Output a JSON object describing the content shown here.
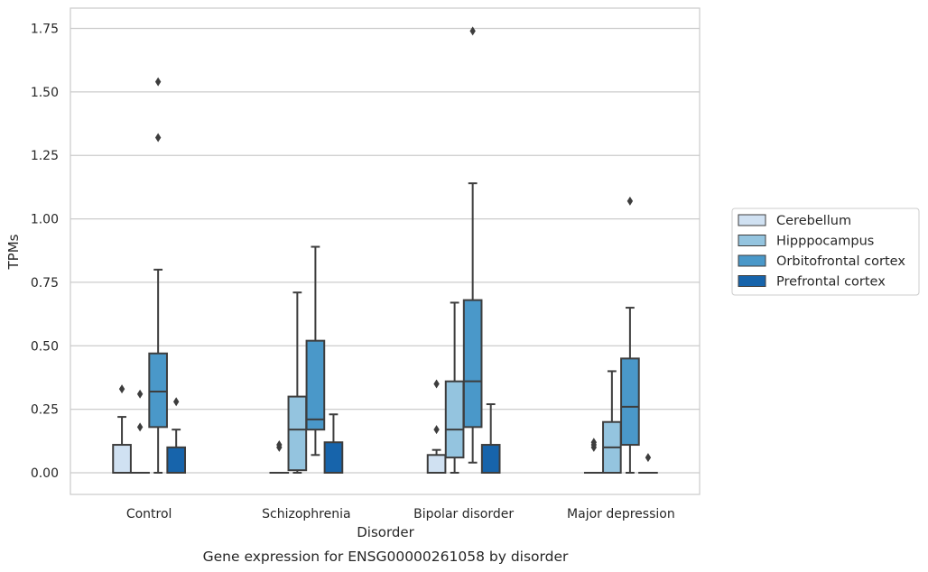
{
  "chart_data": {
    "type": "box",
    "title": "",
    "caption": "Gene expression for ENSG00000261058 by disorder",
    "xlabel": "Disorder",
    "ylabel": "TPMs",
    "ylim": [
      -0.085,
      1.83
    ],
    "yticks": [
      0,
      0.25,
      0.5,
      0.75,
      1.0,
      1.25,
      1.5,
      1.75
    ],
    "ytick_labels": [
      "0.00",
      "0.25",
      "0.50",
      "0.75",
      "1.00",
      "1.25",
      "1.50",
      "1.75"
    ],
    "grid": "horizontal",
    "legend_position": "right",
    "categories": [
      "Control",
      "Schizophrenia",
      "Bipolar disorder",
      "Major depression"
    ],
    "series": [
      {
        "name": "Cerebellum",
        "color": "#d0e1f2",
        "boxes": [
          {
            "q1": 0.0,
            "median": 0.0,
            "q3": 0.11,
            "whislo": 0.0,
            "whishi": 0.22,
            "fliers": [
              0.33
            ]
          },
          {
            "q1": 0.0,
            "median": 0.0,
            "q3": 0.0,
            "whislo": 0.0,
            "whishi": 0.0,
            "fliers": [
              0.1,
              0.11
            ]
          },
          {
            "q1": 0.0,
            "median": 0.0,
            "q3": 0.07,
            "whislo": 0.0,
            "whishi": 0.09,
            "fliers": [
              0.17,
              0.35
            ]
          },
          {
            "q1": 0.0,
            "median": 0.0,
            "q3": 0.0,
            "whislo": 0.0,
            "whishi": 0.0,
            "fliers": [
              0.1,
              0.11,
              0.12
            ]
          }
        ]
      },
      {
        "name": "Hipppocampus",
        "color": "#94c4df",
        "boxes": [
          {
            "q1": 0.0,
            "median": 0.0,
            "q3": 0.0,
            "whislo": 0.0,
            "whishi": 0.0,
            "fliers": [
              0.18,
              0.31
            ]
          },
          {
            "q1": 0.01,
            "median": 0.17,
            "q3": 0.3,
            "whislo": 0.0,
            "whishi": 0.71,
            "fliers": []
          },
          {
            "q1": 0.06,
            "median": 0.17,
            "q3": 0.36,
            "whislo": 0.0,
            "whishi": 0.67,
            "fliers": []
          },
          {
            "q1": 0.0,
            "median": 0.1,
            "q3": 0.2,
            "whislo": 0.0,
            "whishi": 0.4,
            "fliers": []
          }
        ]
      },
      {
        "name": "Orbitofrontal cortex",
        "color": "#4a98c9",
        "boxes": [
          {
            "q1": 0.18,
            "median": 0.32,
            "q3": 0.47,
            "whislo": 0.0,
            "whishi": 0.8,
            "fliers": [
              1.32,
              1.54
            ]
          },
          {
            "q1": 0.17,
            "median": 0.21,
            "q3": 0.52,
            "whislo": 0.07,
            "whishi": 0.89,
            "fliers": []
          },
          {
            "q1": 0.18,
            "median": 0.36,
            "q3": 0.68,
            "whislo": 0.04,
            "whishi": 1.14,
            "fliers": [
              1.74
            ]
          },
          {
            "q1": 0.11,
            "median": 0.26,
            "q3": 0.45,
            "whislo": 0.0,
            "whishi": 0.65,
            "fliers": [
              1.07
            ]
          }
        ]
      },
      {
        "name": "Prefrontal cortex",
        "color": "#1764ab",
        "boxes": [
          {
            "q1": 0.0,
            "median": 0.0,
            "q3": 0.1,
            "whislo": 0.0,
            "whishi": 0.17,
            "fliers": [
              0.28
            ]
          },
          {
            "q1": 0.0,
            "median": 0.0,
            "q3": 0.12,
            "whislo": 0.0,
            "whishi": 0.23,
            "fliers": []
          },
          {
            "q1": 0.0,
            "median": 0.0,
            "q3": 0.11,
            "whislo": 0.0,
            "whishi": 0.27,
            "fliers": []
          },
          {
            "q1": 0.0,
            "median": 0.0,
            "q3": 0.0,
            "whislo": 0.0,
            "whishi": 0.0,
            "fliers": [
              0.06
            ]
          }
        ]
      }
    ]
  }
}
